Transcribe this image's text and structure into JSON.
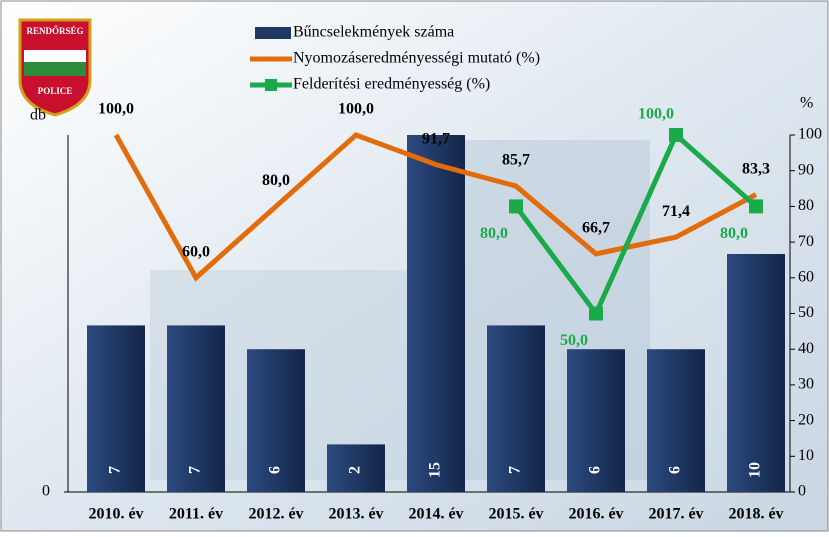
{
  "logo": {
    "top": "RENDŐRSÉG",
    "bottom": "POLICE"
  },
  "chart_data": {
    "type": "bar",
    "ylabel": "db",
    "y2label": "%",
    "categories": [
      "2010. év",
      "2011. év",
      "2012. év",
      "2013. év",
      "2014. év",
      "2015. év",
      "2016. év",
      "2017. év",
      "2018. év"
    ],
    "ylim": [
      0,
      15
    ],
    "yticks": [
      0
    ],
    "y2lim": [
      0,
      100
    ],
    "y2ticks": [
      0,
      10,
      20,
      30,
      40,
      50,
      60,
      70,
      80,
      90,
      100
    ],
    "series": [
      {
        "name": "Bűncselekmények száma",
        "color": "#1f3864",
        "values": [
          7,
          7,
          6,
          2,
          15,
          7,
          6,
          6,
          10
        ]
      },
      {
        "name": "Nyomozáseredményességi mutató (%)",
        "color": "#e36c0a",
        "axis": "y2",
        "type": "line",
        "values": [
          100,
          60,
          80,
          100,
          91.7,
          85.7,
          66.7,
          71.4,
          83.3
        ],
        "value_labels": [
          "100,0",
          "60,0",
          "80,0",
          "100,0",
          "91,7",
          "85,7",
          "66,7",
          "71,4",
          "83,3"
        ]
      },
      {
        "name": "Felderítési eredményesség (%)",
        "color": "#1aaa4a",
        "axis": "y2",
        "type": "line",
        "values": [
          null,
          null,
          null,
          null,
          null,
          80,
          50,
          100,
          80
        ],
        "value_labels": [
          null,
          null,
          null,
          null,
          null,
          "80,0",
          "50,0",
          "100,0",
          "80,0"
        ]
      }
    ]
  }
}
